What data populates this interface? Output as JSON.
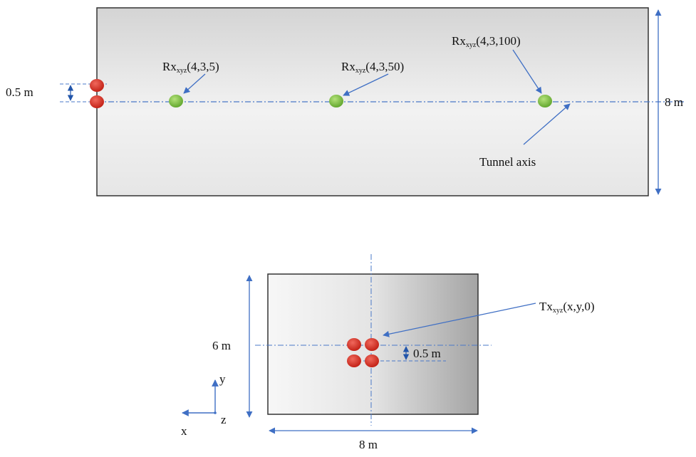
{
  "colors": {
    "axis_line": "#4a78c8",
    "arrow": "#3f6fc4",
    "tx_marker": "#d42a1e",
    "rx_marker": "#7cc43a",
    "box_outline": "#333333"
  },
  "top_view": {
    "height_label": "8 m",
    "spacing_label": "0.5 m",
    "axis_label": "Tunnel axis",
    "receivers": [
      {
        "prefix": "Rx",
        "subscript": "xyz",
        "coords": "(4,3,5)"
      },
      {
        "prefix": "Rx",
        "subscript": "xyz",
        "coords": "(4,3,50)"
      },
      {
        "prefix": "Rx",
        "subscript": "xyz",
        "coords": "(4,3,100)"
      }
    ]
  },
  "cross_section": {
    "height_label": "6 m",
    "width_label": "8 m",
    "spacing_label": "0.5 m",
    "transmitter": {
      "prefix": "Tx",
      "subscript": "xyz",
      "coords": "(x,y,0)"
    }
  },
  "axes_legend": {
    "x": "x",
    "y": "y",
    "z": "z"
  }
}
